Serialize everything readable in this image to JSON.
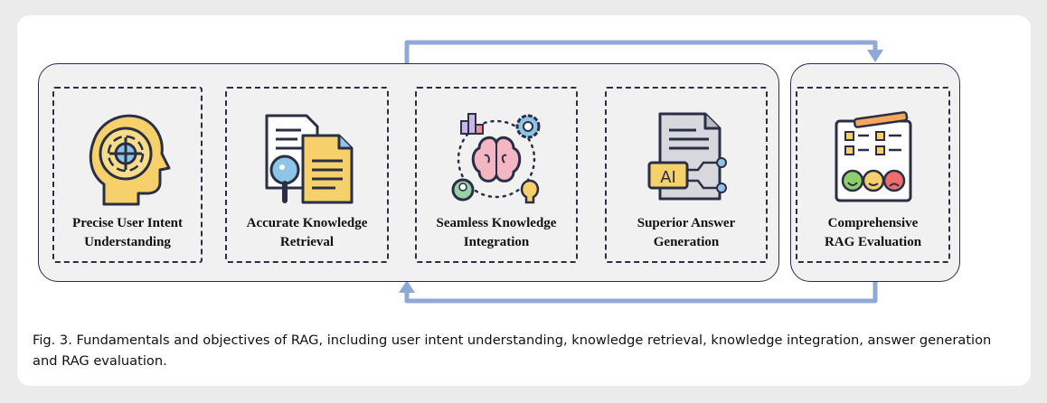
{
  "stages": [
    {
      "label": "Precise User Intent\nUnderstanding",
      "icon": "head-target-icon"
    },
    {
      "label": "Accurate Knowledge\nRetrieval",
      "icon": "document-search-icon"
    },
    {
      "label": "Seamless Knowledge\nIntegration",
      "icon": "brain-network-icon"
    },
    {
      "label": "Superior Answer\nGeneration",
      "icon": "ai-document-icon"
    }
  ],
  "evaluation": {
    "label": "Comprehensive\nRAG Evaluation",
    "icon": "evaluation-checklist-icon"
  },
  "caption": "Fig. 3.  Fundamentals and objectives of RAG, including user intent understanding, knowledge retrieval, knowledge integration, answer generation and RAG evaluation.",
  "colors": {
    "arrow": "#8fa8d8",
    "outline": "#2a2f45",
    "panel": "#f1f1f1",
    "accent_yellow": "#f5d06b",
    "accent_blue": "#8ec5e6"
  }
}
